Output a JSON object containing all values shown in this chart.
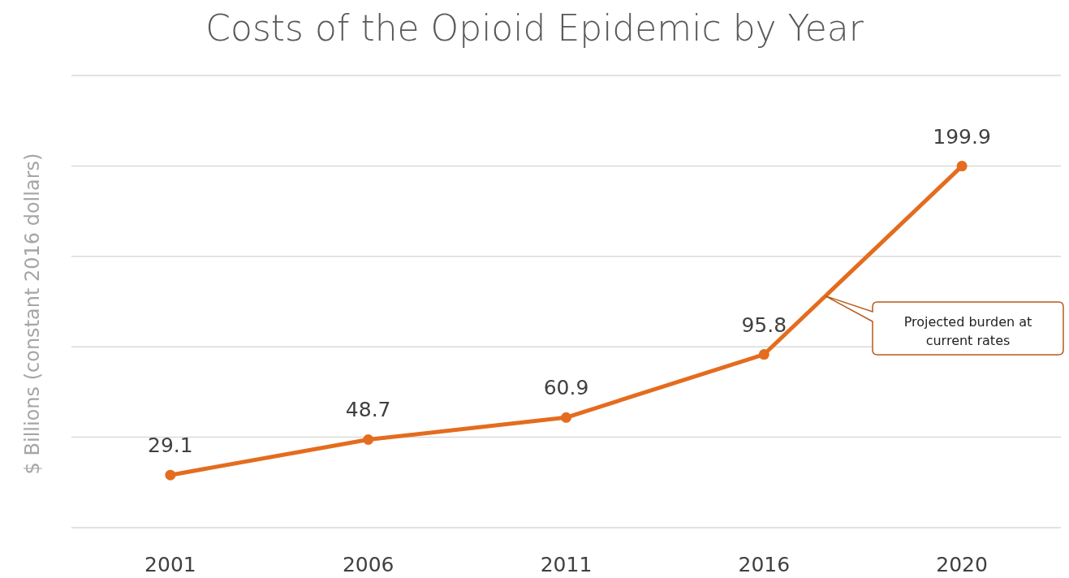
{
  "chart_data": {
    "type": "line",
    "title": "Costs of the Opioid Epidemic by Year",
    "ylabel": "$ Billions (constant 2016 dollars)",
    "categories": [
      "2001",
      "2006",
      "2011",
      "2016",
      "2020"
    ],
    "series": [
      {
        "color": "#e46c1e",
        "values": [
          29.1,
          48.7,
          60.9,
          95.8,
          199.9
        ]
      }
    ],
    "ylim": [
      0,
      250
    ],
    "yticks": [
      {
        "value": 0,
        "label": null
      },
      {
        "value": 50,
        "label": null
      },
      {
        "value": 100,
        "label": null
      },
      {
        "value": 150,
        "label": null
      },
      {
        "value": 200,
        "label": null
      },
      {
        "value": 250,
        "label": null
      }
    ],
    "tick_labels": "x",
    "grid": "y",
    "marker": "circle",
    "line_style": "solid",
    "data_labels": true,
    "annotations": [
      "Projected burden at current rates"
    ]
  }
}
